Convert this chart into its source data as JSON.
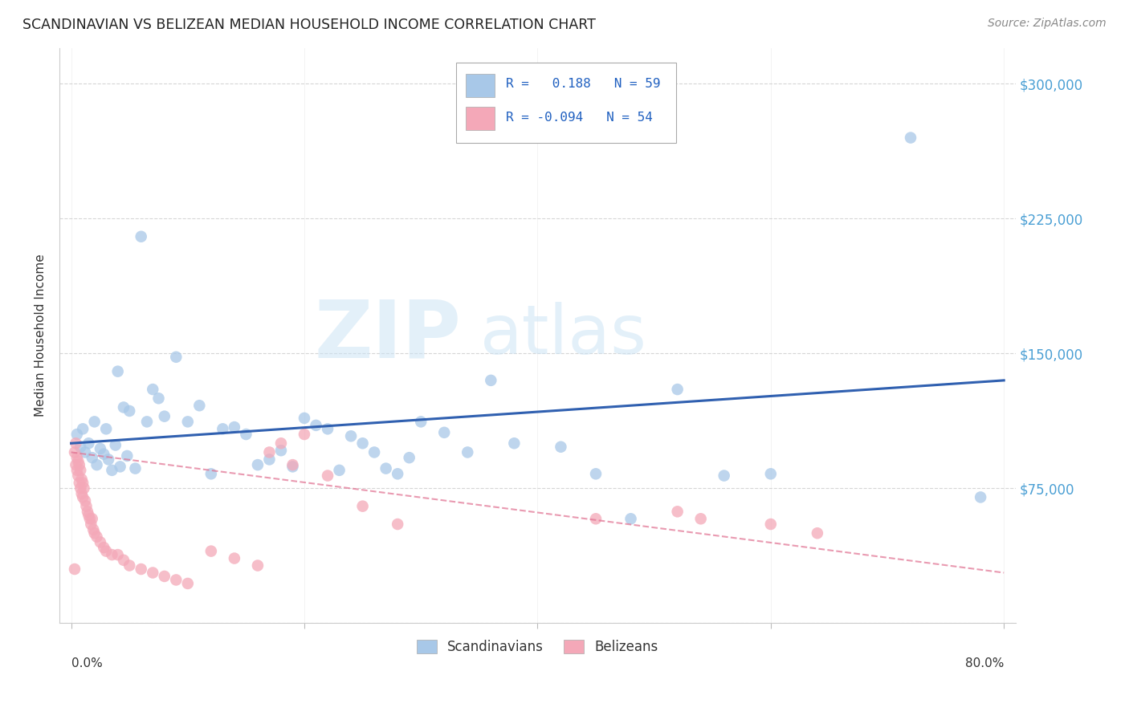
{
  "title": "SCANDINAVIAN VS BELIZEAN MEDIAN HOUSEHOLD INCOME CORRELATION CHART",
  "source": "Source: ZipAtlas.com",
  "ylabel": "Median Household Income",
  "yticks": [
    0,
    75000,
    150000,
    225000,
    300000
  ],
  "ytick_labels": [
    "",
    "$75,000",
    "$150,000",
    "$225,000",
    "$300,000"
  ],
  "xlim": [
    0.0,
    0.8
  ],
  "ylim": [
    0,
    320000
  ],
  "blue_R": 0.188,
  "blue_N": 59,
  "pink_R": -0.094,
  "pink_N": 54,
  "blue_color": "#A8C8E8",
  "pink_color": "#F4A8B8",
  "blue_line_color": "#3060B0",
  "pink_line_color": "#E07090",
  "legend_blue_label": "Scandinavians",
  "legend_pink_label": "Belizeans",
  "watermark_zip": "ZIP",
  "watermark_atlas": "atlas",
  "blue_scatter_x": [
    0.005,
    0.008,
    0.01,
    0.012,
    0.015,
    0.018,
    0.02,
    0.022,
    0.025,
    0.028,
    0.03,
    0.032,
    0.035,
    0.038,
    0.04,
    0.042,
    0.045,
    0.048,
    0.05,
    0.055,
    0.06,
    0.065,
    0.07,
    0.075,
    0.08,
    0.09,
    0.1,
    0.11,
    0.12,
    0.13,
    0.14,
    0.15,
    0.16,
    0.17,
    0.18,
    0.19,
    0.2,
    0.21,
    0.22,
    0.23,
    0.24,
    0.25,
    0.26,
    0.27,
    0.28,
    0.29,
    0.3,
    0.32,
    0.34,
    0.36,
    0.38,
    0.42,
    0.45,
    0.48,
    0.52,
    0.56,
    0.6,
    0.72,
    0.78
  ],
  "blue_scatter_y": [
    105000,
    98000,
    108000,
    95000,
    100000,
    92000,
    112000,
    88000,
    97000,
    94000,
    108000,
    91000,
    85000,
    99000,
    140000,
    87000,
    120000,
    93000,
    118000,
    86000,
    215000,
    112000,
    130000,
    125000,
    115000,
    148000,
    112000,
    121000,
    83000,
    108000,
    109000,
    105000,
    88000,
    91000,
    96000,
    87000,
    114000,
    110000,
    108000,
    85000,
    104000,
    100000,
    95000,
    86000,
    83000,
    92000,
    112000,
    106000,
    95000,
    135000,
    100000,
    98000,
    83000,
    58000,
    130000,
    82000,
    83000,
    270000,
    70000
  ],
  "pink_scatter_x": [
    0.003,
    0.004,
    0.004,
    0.005,
    0.005,
    0.006,
    0.006,
    0.007,
    0.007,
    0.008,
    0.008,
    0.009,
    0.009,
    0.01,
    0.01,
    0.011,
    0.012,
    0.013,
    0.014,
    0.015,
    0.016,
    0.017,
    0.018,
    0.019,
    0.02,
    0.022,
    0.025,
    0.028,
    0.03,
    0.035,
    0.04,
    0.045,
    0.05,
    0.06,
    0.07,
    0.08,
    0.09,
    0.1,
    0.12,
    0.14,
    0.16,
    0.17,
    0.18,
    0.19,
    0.2,
    0.22,
    0.25,
    0.28,
    0.45,
    0.52,
    0.54,
    0.6,
    0.64,
    0.003
  ],
  "pink_scatter_y": [
    95000,
    100000,
    88000,
    92000,
    85000,
    90000,
    82000,
    88000,
    78000,
    85000,
    75000,
    80000,
    72000,
    78000,
    70000,
    75000,
    68000,
    65000,
    62000,
    60000,
    58000,
    55000,
    58000,
    52000,
    50000,
    48000,
    45000,
    42000,
    40000,
    38000,
    38000,
    35000,
    32000,
    30000,
    28000,
    26000,
    24000,
    22000,
    40000,
    36000,
    32000,
    95000,
    100000,
    88000,
    105000,
    82000,
    65000,
    55000,
    58000,
    62000,
    58000,
    55000,
    50000,
    30000
  ],
  "blue_line_x0": 0.0,
  "blue_line_x1": 0.8,
  "blue_line_y0": 100000,
  "blue_line_y1": 135000,
  "pink_line_x0": 0.0,
  "pink_line_x1": 0.8,
  "pink_line_y0": 95000,
  "pink_line_y1": 28000
}
